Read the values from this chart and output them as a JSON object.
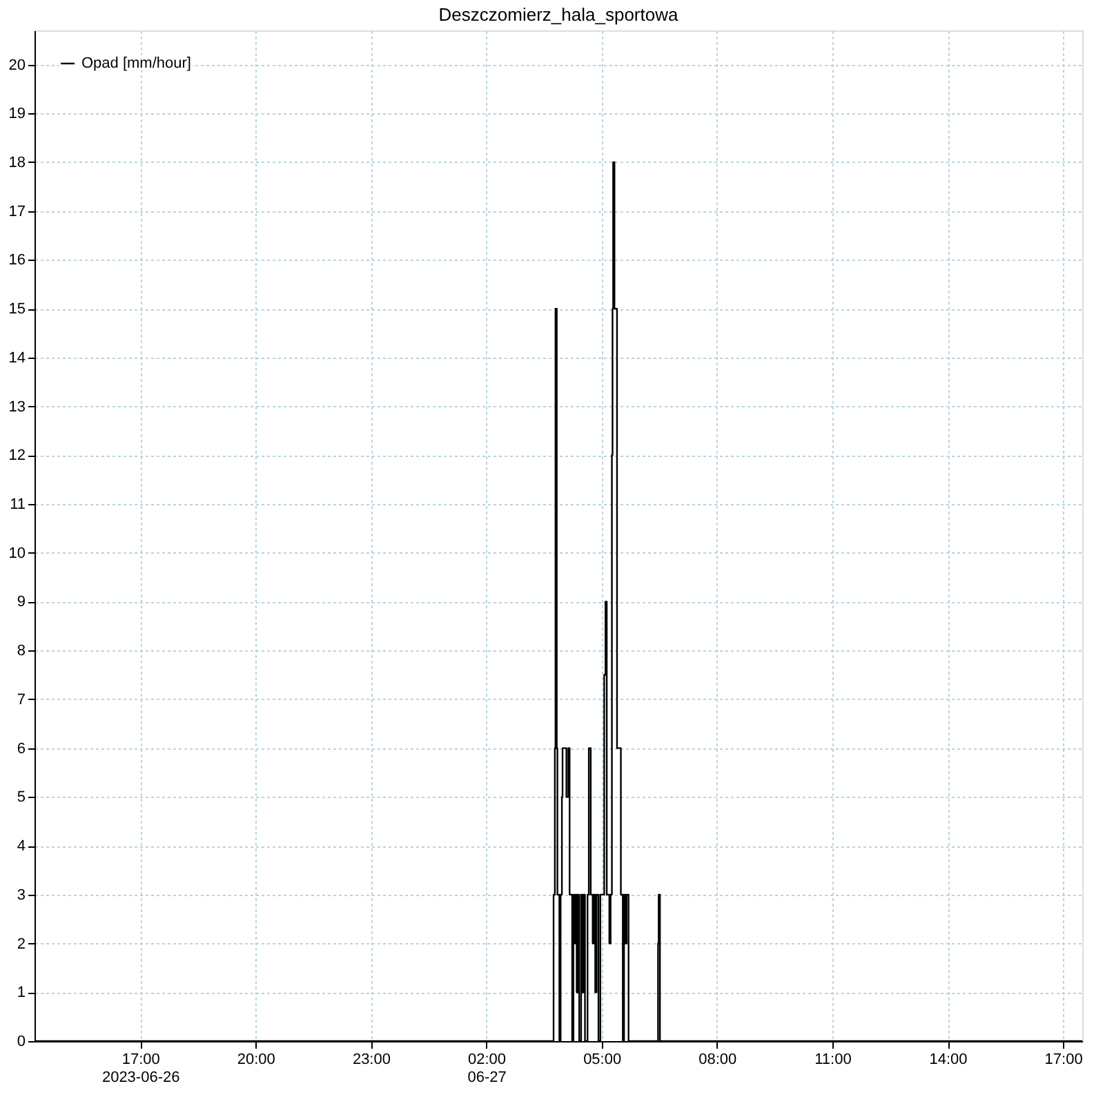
{
  "chart_data": {
    "type": "step",
    "title": "Deszczomierz_hala_sportowa",
    "series": [
      {
        "name": "Opad [mm/hour]",
        "color": "#000000",
        "x": [
          "2023-06-26T14:15",
          "2023-06-27T03:45",
          "2023-06-27T03:47",
          "2023-06-27T03:48",
          "2023-06-27T03:50",
          "2023-06-27T03:51",
          "2023-06-27T03:54",
          "2023-06-27T03:56",
          "2023-06-27T03:58",
          "2023-06-27T03:59",
          "2023-06-27T04:05",
          "2023-06-27T04:08",
          "2023-06-27T04:10",
          "2023-06-27T04:14",
          "2023-06-27T04:16",
          "2023-06-27T04:17",
          "2023-06-27T04:19",
          "2023-06-27T04:21",
          "2023-06-27T04:23",
          "2023-06-27T04:25",
          "2023-06-27T04:28",
          "2023-06-27T04:30",
          "2023-06-27T04:32",
          "2023-06-27T04:34",
          "2023-06-27T04:38",
          "2023-06-27T04:40",
          "2023-06-27T04:43",
          "2023-06-27T04:46",
          "2023-06-27T04:48",
          "2023-06-27T04:50",
          "2023-06-27T04:52",
          "2023-06-27T04:55",
          "2023-06-27T04:58",
          "2023-06-27T05:04",
          "2023-06-27T05:06",
          "2023-06-27T05:08",
          "2023-06-27T05:12",
          "2023-06-27T05:14",
          "2023-06-27T05:16",
          "2023-06-27T05:17",
          "2023-06-27T05:18",
          "2023-06-27T05:20",
          "2023-06-27T05:24",
          "2023-06-27T05:30",
          "2023-06-27T05:33",
          "2023-06-27T05:35",
          "2023-06-27T05:37",
          "2023-06-27T05:39",
          "2023-06-27T05:42",
          "2023-06-27T06:28",
          "2023-06-27T06:29",
          "2023-06-27T06:31",
          "2023-06-27T17:30"
        ],
        "values": [
          0,
          3,
          6,
          15,
          6,
          3,
          0,
          3,
          5,
          6,
          5,
          6,
          3,
          0,
          3,
          2,
          3,
          1,
          3,
          0,
          3,
          1,
          3,
          0,
          3,
          6,
          3,
          2,
          3,
          1,
          3,
          0,
          3,
          7.5,
          9,
          3,
          2,
          3,
          12,
          15,
          18,
          15,
          6,
          3,
          0,
          3,
          2,
          3,
          0,
          2,
          3,
          0,
          0
        ]
      }
    ],
    "xlim": [
      "2023-06-26T14:15",
      "2023-06-27T17:30"
    ],
    "xticks": [
      {
        "value": "2023-06-26T17:00",
        "label": "17:00\n2023-06-26"
      },
      {
        "value": "2023-06-26T20:00",
        "label": "20:00"
      },
      {
        "value": "2023-06-26T23:00",
        "label": "23:00"
      },
      {
        "value": "2023-06-27T02:00",
        "label": "02:00\n06-27"
      },
      {
        "value": "2023-06-27T05:00",
        "label": "05:00"
      },
      {
        "value": "2023-06-27T08:00",
        "label": "08:00"
      },
      {
        "value": "2023-06-27T11:00",
        "label": "11:00"
      },
      {
        "value": "2023-06-27T14:00",
        "label": "14:00"
      },
      {
        "value": "2023-06-27T17:00",
        "label": "17:00"
      }
    ],
    "ylim": [
      0,
      20.7
    ],
    "yticks": [
      0,
      1,
      2,
      3,
      4,
      5,
      6,
      7,
      8,
      9,
      10,
      11,
      12,
      13,
      14,
      15,
      16,
      17,
      18,
      19,
      20
    ],
    "grid": true,
    "legend": "top left",
    "line_style": "solid",
    "marker": "none"
  }
}
